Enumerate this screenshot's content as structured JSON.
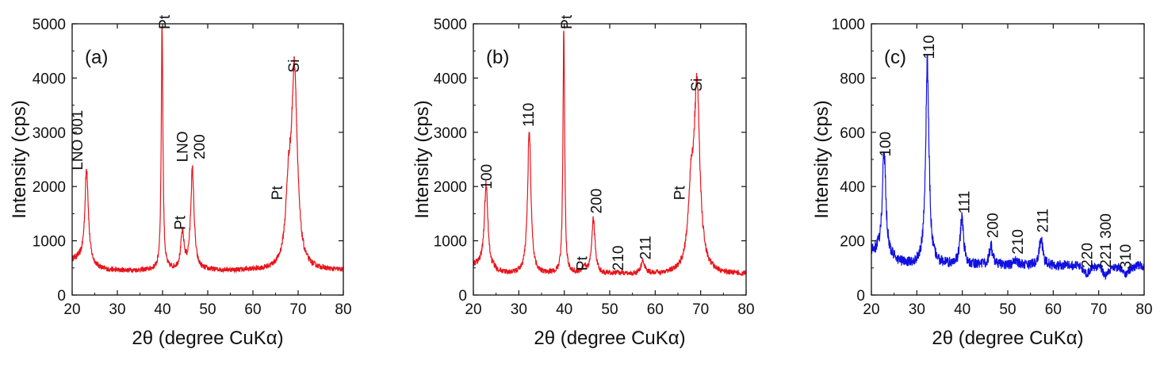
{
  "chart_data": [
    {
      "type": "line",
      "panel_label": "(a)",
      "xlabel": "2θ (degree CuKα)",
      "ylabel": "Intensity (cps)",
      "xlim": [
        20,
        80
      ],
      "ylim": [
        0,
        5000
      ],
      "xticks": [
        20,
        30,
        40,
        50,
        60,
        70,
        80
      ],
      "yticks": [
        0,
        1000,
        2000,
        3000,
        4000,
        5000
      ],
      "color": "#e8141b",
      "background_level": 450,
      "series": [
        {
          "peaks": [
            {
              "x": 23.2,
              "y": 2200
            },
            {
              "x": 39.9,
              "y": 5000
            },
            {
              "x": 44.4,
              "y": 1100
            },
            {
              "x": 46.6,
              "y": 2280
            },
            {
              "x": 67.9,
              "y": 1700
            },
            {
              "x": 69.2,
              "y": 4000
            }
          ]
        }
      ],
      "annotations": [
        {
          "text": "LNO 001",
          "x": 22.3,
          "y": 2300
        },
        {
          "text": "Pt",
          "x": 41.6,
          "y": 4900
        },
        {
          "text": "Pt",
          "x": 45.0,
          "y": 1200
        },
        {
          "text": "LNO",
          "x": 45.5,
          "y": 2450
        },
        {
          "text": "200",
          "x": 49.3,
          "y": 2500
        },
        {
          "text": "Pt",
          "x": 66.5,
          "y": 1750
        },
        {
          "text": "Si",
          "x": 70.2,
          "y": 4100
        }
      ]
    },
    {
      "type": "line",
      "panel_label": "(b)",
      "xlabel": "2θ (degree CuKα)",
      "ylabel": "Intensity (cps)",
      "xlim": [
        20,
        80
      ],
      "ylim": [
        0,
        5000
      ],
      "xticks": [
        20,
        30,
        40,
        50,
        60,
        70,
        80
      ],
      "yticks": [
        0,
        1000,
        2000,
        3000,
        4000,
        5000
      ],
      "color": "#e8141b",
      "background_level": 380,
      "series": [
        {
          "peaks": [
            {
              "x": 22.8,
              "y": 1900
            },
            {
              "x": 32.3,
              "y": 3000
            },
            {
              "x": 39.9,
              "y": 5000
            },
            {
              "x": 44.4,
              "y": 500
            },
            {
              "x": 46.4,
              "y": 1380
            },
            {
              "x": 51.8,
              "y": 400
            },
            {
              "x": 57.3,
              "y": 620
            },
            {
              "x": 67.9,
              "y": 1700
            },
            {
              "x": 69.2,
              "y": 3650
            }
          ]
        }
      ],
      "annotations": [
        {
          "text": "100",
          "x": 24.0,
          "y": 1950
        },
        {
          "text": "110",
          "x": 33.3,
          "y": 3100
        },
        {
          "text": "Pt",
          "x": 41.6,
          "y": 4900
        },
        {
          "text": "Pt",
          "x": 45.0,
          "y": 450
        },
        {
          "text": "200",
          "x": 48.2,
          "y": 1500
        },
        {
          "text": "210",
          "x": 53.0,
          "y": 450
        },
        {
          "text": "211",
          "x": 59.0,
          "y": 650
        },
        {
          "text": "Pt",
          "x": 66.5,
          "y": 1750
        },
        {
          "text": "Si",
          "x": 70.2,
          "y": 3750
        }
      ]
    },
    {
      "type": "line",
      "panel_label": "(c)",
      "xlabel": "2θ (degree CuKα)",
      "ylabel": "Intensity (cps)",
      "xlim": [
        20,
        80
      ],
      "ylim": [
        0,
        1000
      ],
      "xticks": [
        20,
        30,
        40,
        50,
        60,
        70,
        80
      ],
      "yticks": [
        0,
        200,
        400,
        600,
        800,
        1000
      ],
      "color": "#1010e0",
      "background_level": 110,
      "series": [
        {
          "peaks": [
            {
              "x": 22.8,
              "y": 490
            },
            {
              "x": 32.3,
              "y": 850
            },
            {
              "x": 39.9,
              "y": 280
            },
            {
              "x": 46.3,
              "y": 180
            },
            {
              "x": 51.8,
              "y": 130
            },
            {
              "x": 57.3,
              "y": 210
            },
            {
              "x": 67.4,
              "y": 80
            },
            {
              "x": 71.5,
              "y": 75
            },
            {
              "x": 76.0,
              "y": 75
            }
          ]
        }
      ],
      "annotations": [
        {
          "text": "100",
          "x": 24.2,
          "y": 510
        },
        {
          "text": "110",
          "x": 33.8,
          "y": 870
        },
        {
          "text": "111",
          "x": 41.5,
          "y": 300
        },
        {
          "text": "200",
          "x": 47.8,
          "y": 210
        },
        {
          "text": "210",
          "x": 53.3,
          "y": 150
        },
        {
          "text": "211",
          "x": 58.8,
          "y": 230
        },
        {
          "text": "220",
          "x": 68.6,
          "y": 100
        },
        {
          "text": "221 300",
          "x": 72.7,
          "y": 100
        },
        {
          "text": "310",
          "x": 77.0,
          "y": 95
        }
      ]
    }
  ]
}
